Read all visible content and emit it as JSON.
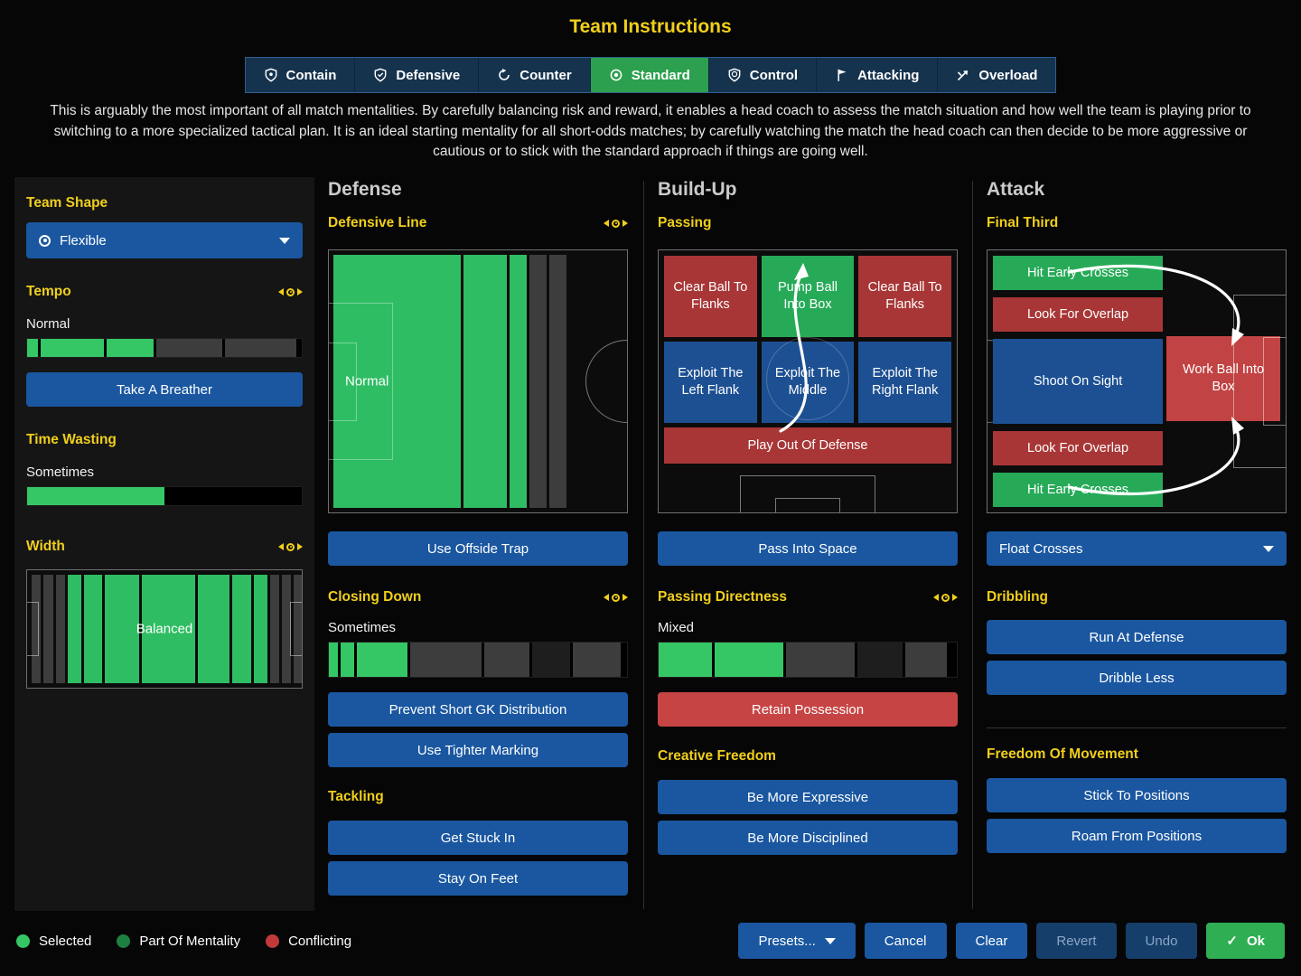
{
  "title": "Team Instructions",
  "description": "This is arguably the most important of all match mentalities. By carefully balancing risk and reward, it enables a head coach to assess the match situation and how well the team is playing prior to switching to a more specialized tactical plan. It is an ideal starting mentality for all short-odds matches; by carefully watching the match the head coach can then decide to be more aggressive or cautious or to stick with the standard approach if things are going well.",
  "colors": {
    "accent_yellow": "#f0cf1c",
    "button_blue": "#1a57a0",
    "tab_blue": "#16334e",
    "selected_tab_green": "#2ca04e",
    "bar_green": "#35c765",
    "bar_gray": "#3d3d3d",
    "zone_green": "#27aa58",
    "zone_blue": "#1d5092",
    "zone_red": "#a83636",
    "conflict_red": "#c74444"
  },
  "icons": {
    "ok_check": "✓"
  },
  "tabs": [
    {
      "label": "Contain",
      "icon": "contain-icon",
      "selected": false
    },
    {
      "label": "Defensive",
      "icon": "defensive-icon",
      "selected": false
    },
    {
      "label": "Counter",
      "icon": "counter-icon",
      "selected": false
    },
    {
      "label": "Standard",
      "icon": "standard-icon",
      "selected": true
    },
    {
      "label": "Control",
      "icon": "control-icon",
      "selected": false
    },
    {
      "label": "Attacking",
      "icon": "attacking-icon",
      "selected": false
    },
    {
      "label": "Overload",
      "icon": "overload-icon",
      "selected": false
    }
  ],
  "left_panel": {
    "team_shape_label": "Team Shape",
    "team_shape_value": "Flexible",
    "tempo_label": "Tempo",
    "tempo_value": "Normal",
    "tempo_segments": [
      {
        "w": "4%",
        "c": "#35c765"
      },
      {
        "w": "23%",
        "c": "#35c765"
      },
      {
        "w": "17%",
        "c": "#35c765"
      },
      {
        "w": "24%",
        "c": "#3d3d3d"
      },
      {
        "w": "26%",
        "c": "#3d3d3d"
      }
    ],
    "take_a_breather": "Take A Breather",
    "time_wasting_label": "Time Wasting",
    "time_wasting_value": "Sometimes",
    "time_wasting_segments": [
      {
        "w": "50%",
        "c": "#35c765"
      }
    ],
    "width_label": "Width",
    "width_value": "Balanced",
    "width_segments": [
      {
        "w": "3.5%",
        "c": "#3d3d3d"
      },
      {
        "w": "3.5%",
        "c": "#3d3d3d"
      },
      {
        "w": "3.5%",
        "c": "#3d3d3d"
      },
      {
        "w": "5%",
        "c": "#2fbd63"
      },
      {
        "w": "7%",
        "c": "#2fbd63"
      },
      {
        "w": "13%",
        "c": "#2fbd63"
      },
      {
        "w": "20%",
        "c": "#2fbd63"
      },
      {
        "w": "12%",
        "c": "#2fbd63"
      },
      {
        "w": "7%",
        "c": "#2fbd63"
      },
      {
        "w": "5%",
        "c": "#2fbd63"
      },
      {
        "w": "3.5%",
        "c": "#3d3d3d"
      },
      {
        "w": "3.5%",
        "c": "#3d3d3d"
      },
      {
        "w": "3.5%",
        "c": "#3d3d3d"
      }
    ]
  },
  "defense": {
    "heading": "Defense",
    "defensive_line_label": "Defensive Line",
    "defensive_line_value": "Normal",
    "defensive_line_segments": [
      {
        "w": "44%",
        "c": "#2fbd63"
      },
      {
        "w": "15%",
        "c": "#2fbd63"
      },
      {
        "w": "6%",
        "c": "#2fbd63"
      },
      {
        "w": "6%",
        "c": "#3d3d3d"
      },
      {
        "w": "6%",
        "c": "#3d3d3d"
      }
    ],
    "use_offside_trap": "Use Offside Trap",
    "closing_down_label": "Closing Down",
    "closing_down_value": "Sometimes",
    "closing_down_segments": [
      {
        "w": "3%",
        "c": "#35c765"
      },
      {
        "w": "4.5%",
        "c": "#35c765"
      },
      {
        "w": "17%",
        "c": "#35c765"
      },
      {
        "w": "24%",
        "c": "#3d3d3d"
      },
      {
        "w": "15%",
        "c": "#3d3d3d"
      },
      {
        "w": "13%",
        "c": "#1e1e1e"
      },
      {
        "w": "16%",
        "c": "#3d3d3d"
      }
    ],
    "prevent_short_gk": "Prevent Short GK Distribution",
    "use_tighter_marking": "Use Tighter Marking",
    "tackling_label": "Tackling",
    "get_stuck_in": "Get Stuck In",
    "stay_on_feet": "Stay On Feet"
  },
  "build_up": {
    "heading": "Build-Up",
    "passing_label": "Passing",
    "zones_row1": [
      {
        "label": "Clear Ball To Flanks",
        "color": "#a83636"
      },
      {
        "label": "Pump Ball Into Box",
        "color": "#27aa58"
      },
      {
        "label": "Clear Ball To Flanks",
        "color": "#a83636"
      }
    ],
    "zones_row2": [
      {
        "label": "Exploit The Left Flank",
        "color": "#1d5092"
      },
      {
        "label": "Exploit The Middle",
        "color": "#1d5092"
      },
      {
        "label": "Exploit The Right Flank",
        "color": "#1d5092"
      }
    ],
    "zone_row3": {
      "label": "Play Out Of Defense",
      "color": "#a83636"
    },
    "pass_into_space": "Pass Into Space",
    "passing_directness_label": "Passing Directness",
    "passing_directness_value": "Mixed",
    "passing_directness_segments": [
      {
        "w": "18%",
        "c": "#35c765"
      },
      {
        "w": "23%",
        "c": "#35c765"
      },
      {
        "w": "23%",
        "c": "#3d3d3d"
      },
      {
        "w": "15%",
        "c": "#1e1e1e"
      },
      {
        "w": "14%",
        "c": "#3d3d3d"
      }
    ],
    "retain_possession": "Retain Possession",
    "creative_freedom_label": "Creative Freedom",
    "be_more_expressive": "Be More Expressive",
    "be_more_disciplined": "Be More Disciplined"
  },
  "attack": {
    "heading": "Attack",
    "final_third_label": "Final Third",
    "zones": [
      {
        "label": "Hit Early Crosses",
        "color": "#27aa58"
      },
      {
        "label": "Look For Overlap",
        "color": "#a83636"
      },
      {
        "label": "Shoot On Sight",
        "color": "#1d5092"
      },
      {
        "label": "Look For Overlap",
        "color": "#a83636"
      },
      {
        "label": "Hit Early Crosses",
        "color": "#27aa58"
      }
    ],
    "work_ball_into_box": {
      "label": "Work Ball Into Box",
      "color": "#c14343"
    },
    "float_crosses": "Float Crosses",
    "dribbling_label": "Dribbling",
    "run_at_defense": "Run At Defense",
    "dribble_less": "Dribble Less",
    "freedom_label": "Freedom Of Movement",
    "stick_to_positions": "Stick To Positions",
    "roam_from_positions": "Roam From Positions"
  },
  "footer": {
    "legend": [
      {
        "label": "Selected",
        "color": "#35c765"
      },
      {
        "label": "Part Of Mentality",
        "color": "#1e8040"
      },
      {
        "label": "Conflicting",
        "color": "#c03a3a"
      }
    ],
    "presets": "Presets...",
    "cancel": "Cancel",
    "clear": "Clear",
    "revert": "Revert",
    "undo": "Undo",
    "ok": "Ok"
  }
}
